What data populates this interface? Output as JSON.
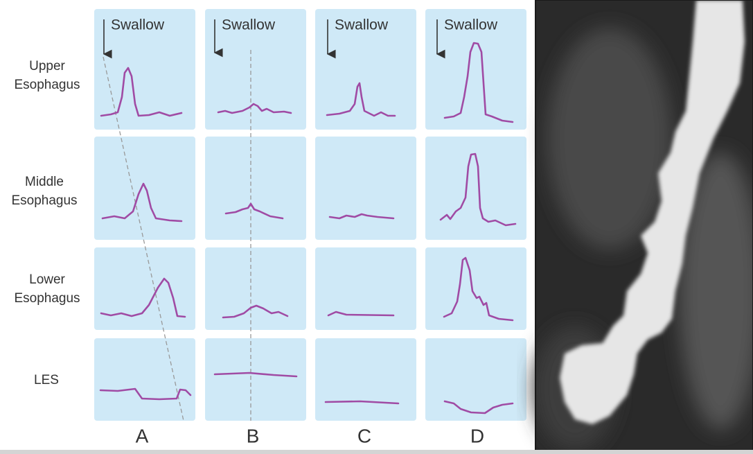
{
  "columns": [
    {
      "label": "A",
      "swallow": "Swallow"
    },
    {
      "label": "B",
      "swallow": "Swallow"
    },
    {
      "label": "C",
      "swallow": "Swallow"
    },
    {
      "label": "D",
      "swallow": "Swallow"
    }
  ],
  "rows": [
    {
      "label_lines": [
        "Upper",
        "Esophagus"
      ]
    },
    {
      "label_lines": [
        "Middle",
        "Esophagus"
      ]
    },
    {
      "label_lines": [
        "Lower",
        "Esophagus"
      ]
    },
    {
      "label_lines": [
        "LES"
      ]
    }
  ]
}
